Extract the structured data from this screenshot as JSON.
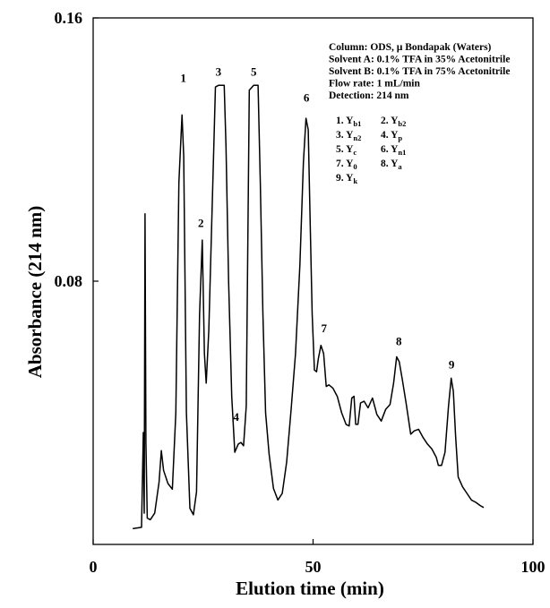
{
  "chart_data": {
    "type": "line",
    "title": "",
    "xlabel": "Elution time (min)",
    "ylabel": "Absorbance (214 nm)",
    "xlim": [
      0,
      100
    ],
    "ylim": [
      0.0,
      0.16
    ],
    "x_ticks": [
      {
        "value": 0,
        "label": "0"
      },
      {
        "value": 50,
        "label": "50"
      },
      {
        "value": 100,
        "label": "100"
      }
    ],
    "y_ticks": [
      {
        "value": 0.08,
        "label": "0.08"
      },
      {
        "value": 0.16,
        "label": "0.16"
      }
    ],
    "grid": false,
    "conditions": [
      "Column: ODS, µ Bondapak (Waters)",
      "Solvent A: 0.1% TFA in 35% Acetonitrile",
      "Solvent B: 0.1% TFA in 75% Acetonitrile",
      "Flow rate: 1 mL/min",
      "Detection: 214 nm"
    ],
    "peak_legend": [
      {
        "num": "1.",
        "name": "Y",
        "sub": "b1"
      },
      {
        "num": "2.",
        "name": "Y",
        "sub": "b2"
      },
      {
        "num": "3.",
        "name": "Y",
        "sub": "n2"
      },
      {
        "num": "4.",
        "name": "Y",
        "sub": "p"
      },
      {
        "num": "5.",
        "name": "Y",
        "sub": "c"
      },
      {
        "num": "6.",
        "name": "Y",
        "sub": "n1"
      },
      {
        "num": "7.",
        "name": "Y",
        "sub": "0"
      },
      {
        "num": "8.",
        "name": "Y",
        "sub": "a"
      },
      {
        "num": "9.",
        "name": "Y",
        "sub": "k"
      }
    ],
    "peak_labels": [
      {
        "label": "1",
        "x": 20.5,
        "y": 0.1405
      },
      {
        "label": "2",
        "x": 24.5,
        "y": 0.0965
      },
      {
        "label": "3",
        "x": 28.5,
        "y": 0.1425
      },
      {
        "label": "4",
        "x": 32.5,
        "y": 0.0375
      },
      {
        "label": "5",
        "x": 36.5,
        "y": 0.1425
      },
      {
        "label": "6",
        "x": 48.5,
        "y": 0.1345
      },
      {
        "label": "7",
        "x": 52.5,
        "y": 0.0645
      },
      {
        "label": "8",
        "x": 69.5,
        "y": 0.0605
      },
      {
        "label": "9",
        "x": 81.5,
        "y": 0.0535
      }
    ],
    "series": [
      {
        "color": "#000000",
        "points": [
          [
            9,
            0.0048
          ],
          [
            11,
            0.0052
          ],
          [
            11.4,
            0.034
          ],
          [
            11.6,
            0.0095
          ],
          [
            11.8,
            0.1005
          ],
          [
            12,
            0.031
          ],
          [
            12.3,
            0.008
          ],
          [
            13,
            0.0075
          ],
          [
            14,
            0.0095
          ],
          [
            15,
            0.019
          ],
          [
            15.5,
            0.0285
          ],
          [
            16,
            0.0225
          ],
          [
            17,
            0.0185
          ],
          [
            18,
            0.0168
          ],
          [
            18.8,
            0.04
          ],
          [
            19.5,
            0.11
          ],
          [
            20.2,
            0.1305
          ],
          [
            20.6,
            0.118
          ],
          [
            21.2,
            0.04
          ],
          [
            22,
            0.011
          ],
          [
            22.8,
            0.009
          ],
          [
            23.5,
            0.016
          ],
          [
            24.2,
            0.07
          ],
          [
            24.8,
            0.0925
          ],
          [
            25.3,
            0.058
          ],
          [
            25.7,
            0.049
          ],
          [
            26.3,
            0.065
          ],
          [
            27.2,
            0.11
          ],
          [
            27.8,
            0.139
          ],
          [
            28.5,
            0.1395
          ],
          [
            29.8,
            0.1395
          ],
          [
            30.2,
            0.121
          ],
          [
            30.8,
            0.08
          ],
          [
            31.5,
            0.045
          ],
          [
            32.2,
            0.028
          ],
          [
            33,
            0.0305
          ],
          [
            33.6,
            0.031
          ],
          [
            34.2,
            0.03
          ],
          [
            34.8,
            0.042
          ],
          [
            35.5,
            0.138
          ],
          [
            36.5,
            0.1395
          ],
          [
            37.5,
            0.1395
          ],
          [
            38,
            0.11
          ],
          [
            38.6,
            0.07
          ],
          [
            39.2,
            0.04
          ],
          [
            40,
            0.0275
          ],
          [
            41,
            0.017
          ],
          [
            42,
            0.0135
          ],
          [
            43,
            0.0155
          ],
          [
            44,
            0.025
          ],
          [
            45,
            0.041
          ],
          [
            46,
            0.058
          ],
          [
            47,
            0.085
          ],
          [
            47.8,
            0.116
          ],
          [
            48.4,
            0.1295
          ],
          [
            48.9,
            0.126
          ],
          [
            49.3,
            0.1
          ],
          [
            49.8,
            0.07
          ],
          [
            50.3,
            0.053
          ],
          [
            50.8,
            0.0525
          ],
          [
            51.2,
            0.0565
          ],
          [
            51.8,
            0.0605
          ],
          [
            52.4,
            0.058
          ],
          [
            53,
            0.048
          ],
          [
            53.6,
            0.0485
          ],
          [
            54.5,
            0.0475
          ],
          [
            55.5,
            0.045
          ],
          [
            56.5,
            0.04
          ],
          [
            57.5,
            0.0365
          ],
          [
            58.2,
            0.036
          ],
          [
            58.8,
            0.0445
          ],
          [
            59.3,
            0.045
          ],
          [
            59.7,
            0.0365
          ],
          [
            60.2,
            0.0365
          ],
          [
            60.8,
            0.043
          ],
          [
            61.6,
            0.0435
          ],
          [
            62.5,
            0.0415
          ],
          [
            63.5,
            0.0445
          ],
          [
            64.5,
            0.0395
          ],
          [
            65.5,
            0.0375
          ],
          [
            66.5,
            0.041
          ],
          [
            67.5,
            0.0425
          ],
          [
            68.3,
            0.049
          ],
          [
            69,
            0.057
          ],
          [
            69.6,
            0.0555
          ],
          [
            70.3,
            0.05
          ],
          [
            71.2,
            0.0425
          ],
          [
            72.2,
            0.0335
          ],
          [
            73,
            0.0345
          ],
          [
            74,
            0.035
          ],
          [
            75,
            0.0325
          ],
          [
            76,
            0.0305
          ],
          [
            77,
            0.029
          ],
          [
            78,
            0.0265
          ],
          [
            78.5,
            0.024
          ],
          [
            79.2,
            0.024
          ],
          [
            80,
            0.028
          ],
          [
            80.8,
            0.042
          ],
          [
            81.4,
            0.0505
          ],
          [
            81.9,
            0.0465
          ],
          [
            82.4,
            0.033
          ],
          [
            83,
            0.0205
          ],
          [
            84,
            0.0175
          ],
          [
            85,
            0.0155
          ],
          [
            86,
            0.0135
          ],
          [
            87,
            0.0128
          ],
          [
            88,
            0.0118
          ],
          [
            88.8,
            0.0112
          ]
        ]
      }
    ]
  }
}
